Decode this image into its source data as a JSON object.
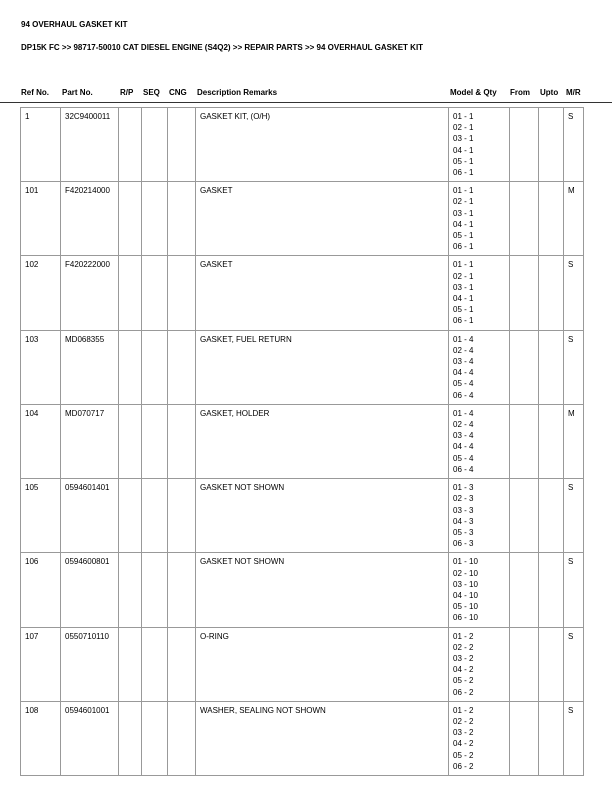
{
  "title": "94 OVERHAUL GASKET KIT",
  "breadcrumb": "DP15K FC >> 98717-50010 CAT DIESEL ENGINE (S4Q2) >> REPAIR PARTS >> 94 OVERHAUL GASKET KIT",
  "headers": {
    "ref": "Ref No.",
    "part": "Part No.",
    "rp": "R/P",
    "seq": "SEQ",
    "cng": "CNG",
    "desc": "Description Remarks",
    "model": "Model & Qty",
    "from": "From",
    "upto": "Upto",
    "mr": "M/R"
  },
  "rows": [
    {
      "ref": "1",
      "part": "32C9400011",
      "desc": "GASKET KIT, (O/H)",
      "qty": "1",
      "mr": "S"
    },
    {
      "ref": "101",
      "part": "F420214000",
      "desc": "GASKET",
      "qty": "1",
      "mr": "M"
    },
    {
      "ref": "102",
      "part": "F420222000",
      "desc": "GASKET",
      "qty": "1",
      "mr": "S"
    },
    {
      "ref": "103",
      "part": "MD068355",
      "desc": "GASKET, FUEL RETURN",
      "qty": "4",
      "mr": "S"
    },
    {
      "ref": "104",
      "part": "MD070717",
      "desc": "GASKET, HOLDER",
      "qty": "4",
      "mr": "M"
    },
    {
      "ref": "105",
      "part": "0594601401",
      "desc": "GASKET NOT SHOWN",
      "qty": "3",
      "mr": "S"
    },
    {
      "ref": "106",
      "part": "0594600801",
      "desc": "GASKET NOT SHOWN",
      "qty": "10",
      "mr": "S"
    },
    {
      "ref": "107",
      "part": "0550710110",
      "desc": "O-RING",
      "qty": "2",
      "mr": "S"
    },
    {
      "ref": "108",
      "part": "0594601001",
      "desc": "WASHER, SEALING NOT SHOWN",
      "qty": "2",
      "mr": "S"
    }
  ],
  "models": [
    "01",
    "02",
    "03",
    "04",
    "05",
    "06"
  ]
}
